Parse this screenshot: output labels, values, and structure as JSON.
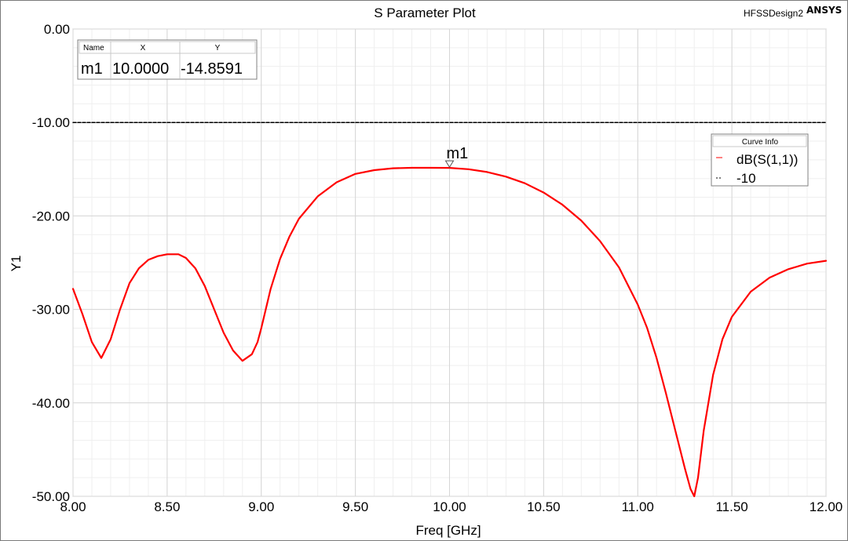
{
  "app": {
    "design_name": "HFSSDesign2",
    "brand": "ANSYS"
  },
  "chart_data": {
    "type": "line",
    "title": "S Parameter Plot",
    "xlabel": "Freq [GHz]",
    "ylabel": "Y1",
    "xlim": [
      8.0,
      12.0
    ],
    "ylim": [
      -50.0,
      0.0
    ],
    "x_ticks": [
      "8.00",
      "8.50",
      "9.00",
      "9.50",
      "10.00",
      "10.50",
      "11.00",
      "11.50",
      "12.00"
    ],
    "y_ticks": [
      "0.00",
      "-10.00",
      "-20.00",
      "-30.00",
      "-40.00",
      "-50.00"
    ],
    "grid": true,
    "legend_position": "top-right",
    "legend_title": "Curve Info",
    "series": [
      {
        "name": "dB(S(1,1))",
        "color": "#ff0000",
        "style": "solid",
        "x": [
          8.0,
          8.05,
          8.1,
          8.15,
          8.2,
          8.25,
          8.3,
          8.35,
          8.4,
          8.45,
          8.5,
          8.56,
          8.6,
          8.65,
          8.7,
          8.75,
          8.8,
          8.85,
          8.9,
          8.95,
          8.98,
          9.0,
          9.05,
          9.1,
          9.15,
          9.2,
          9.3,
          9.4,
          9.5,
          9.6,
          9.7,
          9.8,
          9.9,
          10.0,
          10.1,
          10.2,
          10.3,
          10.4,
          10.5,
          10.6,
          10.7,
          10.8,
          10.9,
          11.0,
          11.05,
          11.1,
          11.15,
          11.2,
          11.25,
          11.28,
          11.3,
          11.32,
          11.35,
          11.4,
          11.45,
          11.5,
          11.6,
          11.7,
          11.8,
          11.9,
          12.0
        ],
        "y": [
          -27.8,
          -30.5,
          -33.5,
          -35.2,
          -33.2,
          -30.0,
          -27.2,
          -25.6,
          -24.7,
          -24.3,
          -24.1,
          -24.1,
          -24.5,
          -25.6,
          -27.5,
          -30.0,
          -32.5,
          -34.4,
          -35.5,
          -34.8,
          -33.5,
          -32.0,
          -27.8,
          -24.6,
          -22.2,
          -20.3,
          -17.9,
          -16.4,
          -15.5,
          -15.1,
          -14.9,
          -14.85,
          -14.85,
          -14.86,
          -15.0,
          -15.3,
          -15.8,
          -16.5,
          -17.5,
          -18.8,
          -20.5,
          -22.7,
          -25.5,
          -29.5,
          -32.0,
          -35.2,
          -39.0,
          -43.0,
          -47.0,
          -49.2,
          -50.0,
          -48.0,
          -43.0,
          -37.0,
          -33.2,
          -30.8,
          -28.1,
          -26.6,
          -25.7,
          -25.1,
          -24.8
        ]
      },
      {
        "name": "-10",
        "color": "#000000",
        "style": "dashed",
        "x": [
          8.0,
          12.0
        ],
        "y": [
          -10,
          -10
        ]
      }
    ],
    "markers": [
      {
        "name": "m1",
        "x": 10.0,
        "y": -14.8591
      }
    ],
    "marker_table": {
      "headers": [
        "Name",
        "X",
        "Y"
      ],
      "rows": [
        [
          "m1",
          "10.0000",
          "-14.8591"
        ]
      ]
    }
  }
}
